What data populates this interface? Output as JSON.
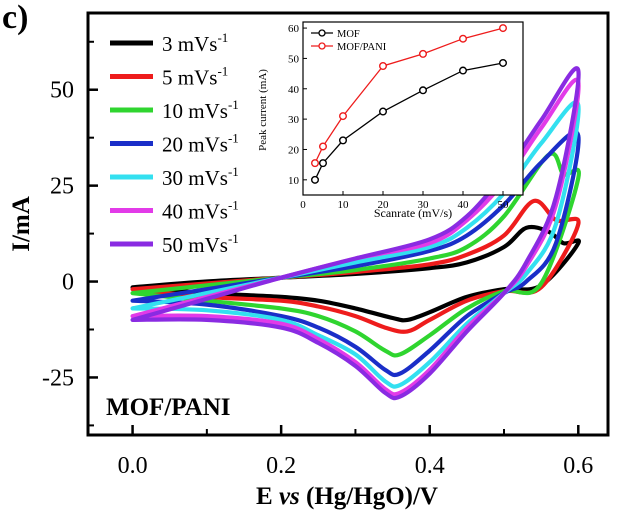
{
  "panel_label": "c)",
  "chart_data": [
    {
      "type": "line",
      "panel": "c",
      "xlabel_parts": [
        "E ",
        "vs",
        " (Hg/HgO)/V"
      ],
      "ylabel": "I/mA",
      "xlim": [
        -0.06,
        0.64
      ],
      "ylim": [
        -40,
        70
      ],
      "xticks": [
        0.0,
        0.2,
        0.4,
        0.6
      ],
      "xtick_labels": [
        "0.0",
        "0.2",
        "0.4",
        "0.6"
      ],
      "yticks": [
        -25,
        0,
        25,
        50
      ],
      "ytick_labels": [
        "-25",
        "0",
        "25",
        "50"
      ],
      "legend_position": "top-left",
      "annotation": "MOF/PANI",
      "series": [
        {
          "name": "3 mVs",
          "sup": "-1",
          "color": "#000000",
          "anodic": [
            [
              0.0,
              -1.5
            ],
            [
              0.1,
              0
            ],
            [
              0.2,
              1
            ],
            [
              0.3,
              2
            ],
            [
              0.4,
              3.5
            ],
            [
              0.45,
              5
            ],
            [
              0.5,
              9
            ],
            [
              0.53,
              14
            ],
            [
              0.56,
              13
            ],
            [
              0.58,
              10
            ],
            [
              0.6,
              10
            ]
          ],
          "cathodic": [
            [
              0.6,
              0
            ],
            [
              0.55,
              -1
            ],
            [
              0.5,
              -2
            ],
            [
              0.45,
              -4
            ],
            [
              0.4,
              -8
            ],
            [
              0.37,
              -10
            ],
            [
              0.35,
              -9.5
            ],
            [
              0.3,
              -7
            ],
            [
              0.25,
              -5
            ],
            [
              0.2,
              -4
            ],
            [
              0.1,
              -3
            ],
            [
              0.0,
              -1.5
            ]
          ]
        },
        {
          "name": "5 mVs",
          "sup": "-1",
          "color": "#ee1c1c",
          "anodic": [
            [
              0.0,
              -2
            ],
            [
              0.1,
              -0.5
            ],
            [
              0.2,
              1
            ],
            [
              0.3,
              2.5
            ],
            [
              0.4,
              4.5
            ],
            [
              0.45,
              7
            ],
            [
              0.5,
              12
            ],
            [
              0.54,
              21
            ],
            [
              0.57,
              16
            ],
            [
              0.6,
              15
            ]
          ],
          "cathodic": [
            [
              0.6,
              0
            ],
            [
              0.55,
              -1.5
            ],
            [
              0.5,
              -2.5
            ],
            [
              0.45,
              -5
            ],
            [
              0.4,
              -10
            ],
            [
              0.37,
              -13
            ],
            [
              0.34,
              -12
            ],
            [
              0.3,
              -9
            ],
            [
              0.25,
              -6.5
            ],
            [
              0.2,
              -5
            ],
            [
              0.1,
              -4
            ],
            [
              0.0,
              -2
            ]
          ]
        },
        {
          "name": "10 mVs",
          "sup": "-1",
          "color": "#2fd52f",
          "anodic": [
            [
              0.0,
              -3
            ],
            [
              0.1,
              -1
            ],
            [
              0.2,
              1
            ],
            [
              0.3,
              3
            ],
            [
              0.4,
              6
            ],
            [
              0.45,
              9
            ],
            [
              0.5,
              17
            ],
            [
              0.56,
              33
            ],
            [
              0.58,
              28
            ],
            [
              0.6,
              27
            ]
          ],
          "cathodic": [
            [
              0.6,
              2
            ],
            [
              0.55,
              -0.5
            ],
            [
              0.5,
              -2.5
            ],
            [
              0.45,
              -7
            ],
            [
              0.4,
              -14
            ],
            [
              0.36,
              -19
            ],
            [
              0.34,
              -18
            ],
            [
              0.3,
              -13
            ],
            [
              0.25,
              -9
            ],
            [
              0.2,
              -7
            ],
            [
              0.1,
              -5
            ],
            [
              0.0,
              -3
            ]
          ]
        },
        {
          "name": "20 mVs",
          "sup": "-1",
          "color": "#1a2ec8",
          "anodic": [
            [
              0.0,
              -5
            ],
            [
              0.1,
              -2
            ],
            [
              0.2,
              1
            ],
            [
              0.3,
              4
            ],
            [
              0.4,
              8
            ],
            [
              0.45,
              12
            ],
            [
              0.5,
              20
            ],
            [
              0.55,
              31
            ],
            [
              0.6,
              38
            ]
          ],
          "cathodic": [
            [
              0.6,
              30
            ],
            [
              0.57,
              10
            ],
            [
              0.53,
              0
            ],
            [
              0.5,
              -3
            ],
            [
              0.45,
              -9
            ],
            [
              0.4,
              -18
            ],
            [
              0.36,
              -24
            ],
            [
              0.34,
              -23
            ],
            [
              0.3,
              -17
            ],
            [
              0.25,
              -12
            ],
            [
              0.2,
              -9
            ],
            [
              0.1,
              -6
            ],
            [
              0.0,
              -5
            ]
          ]
        },
        {
          "name": "30 mVs",
          "sup": "-1",
          "color": "#33e0f0",
          "anodic": [
            [
              0.0,
              -7
            ],
            [
              0.1,
              -3
            ],
            [
              0.2,
              1
            ],
            [
              0.3,
              5
            ],
            [
              0.4,
              9
            ],
            [
              0.45,
              14
            ],
            [
              0.5,
              23
            ],
            [
              0.55,
              36
            ],
            [
              0.6,
              46
            ]
          ],
          "cathodic": [
            [
              0.6,
              40
            ],
            [
              0.57,
              15
            ],
            [
              0.53,
              2
            ],
            [
              0.5,
              -3
            ],
            [
              0.45,
              -11
            ],
            [
              0.4,
              -21
            ],
            [
              0.36,
              -27
            ],
            [
              0.34,
              -26
            ],
            [
              0.3,
              -19
            ],
            [
              0.25,
              -14
            ],
            [
              0.2,
              -10
            ],
            [
              0.1,
              -7.5
            ],
            [
              0.0,
              -7
            ]
          ]
        },
        {
          "name": "40 mVs",
          "sup": "-1",
          "color": "#e23be8",
          "anodic": [
            [
              0.0,
              -9
            ],
            [
              0.1,
              -4
            ],
            [
              0.2,
              1
            ],
            [
              0.3,
              6
            ],
            [
              0.4,
              10
            ],
            [
              0.45,
              16
            ],
            [
              0.5,
              26
            ],
            [
              0.55,
              40
            ],
            [
              0.6,
              52
            ]
          ],
          "cathodic": [
            [
              0.6,
              46
            ],
            [
              0.57,
              20
            ],
            [
              0.53,
              4
            ],
            [
              0.5,
              -3
            ],
            [
              0.45,
              -12
            ],
            [
              0.4,
              -23
            ],
            [
              0.36,
              -29
            ],
            [
              0.34,
              -28
            ],
            [
              0.3,
              -21
            ],
            [
              0.25,
              -15
            ],
            [
              0.2,
              -11
            ],
            [
              0.1,
              -9
            ],
            [
              0.0,
              -9
            ]
          ]
        },
        {
          "name": "50 mVs",
          "sup": "-1",
          "color": "#8a2be2",
          "anodic": [
            [
              0.0,
              -10
            ],
            [
              0.1,
              -4.5
            ],
            [
              0.2,
              1
            ],
            [
              0.3,
              6
            ],
            [
              0.4,
              11
            ],
            [
              0.45,
              17
            ],
            [
              0.5,
              28
            ],
            [
              0.55,
              42
            ],
            [
              0.6,
              55
            ]
          ],
          "cathodic": [
            [
              0.6,
              50
            ],
            [
              0.57,
              22
            ],
            [
              0.53,
              5
            ],
            [
              0.5,
              -3
            ],
            [
              0.45,
              -13
            ],
            [
              0.4,
              -24
            ],
            [
              0.36,
              -30
            ],
            [
              0.34,
              -29
            ],
            [
              0.3,
              -22
            ],
            [
              0.25,
              -16
            ],
            [
              0.2,
              -12
            ],
            [
              0.1,
              -10
            ],
            [
              0.0,
              -10
            ]
          ]
        }
      ]
    },
    {
      "type": "line",
      "panel": "inset",
      "xlabel": "Scanrate (mV/s)",
      "ylabel": "Peak current (mA)",
      "xlim": [
        0,
        55
      ],
      "ylim": [
        5,
        62
      ],
      "xticks": [
        0,
        10,
        20,
        30,
        40,
        50
      ],
      "xtick_labels": [
        "0",
        "10",
        "20",
        "30",
        "40",
        "50"
      ],
      "yticks": [
        10,
        20,
        30,
        40,
        50,
        60
      ],
      "ytick_labels": [
        "10",
        "20",
        "30",
        "40",
        "50",
        "60"
      ],
      "legend_position": "top-left",
      "series": [
        {
          "name": "MOF",
          "color": "#000000",
          "x": [
            3,
            5,
            10,
            20,
            30,
            40,
            50
          ],
          "y": [
            10,
            15.5,
            23,
            32.5,
            39.5,
            46,
            48.5
          ]
        },
        {
          "name": "MOF/PANI",
          "color": "#ee1c1c",
          "x": [
            3,
            5,
            10,
            20,
            30,
            40,
            50
          ],
          "y": [
            15.5,
            21,
            31,
            47.5,
            51.5,
            56.5,
            60
          ]
        }
      ]
    }
  ]
}
